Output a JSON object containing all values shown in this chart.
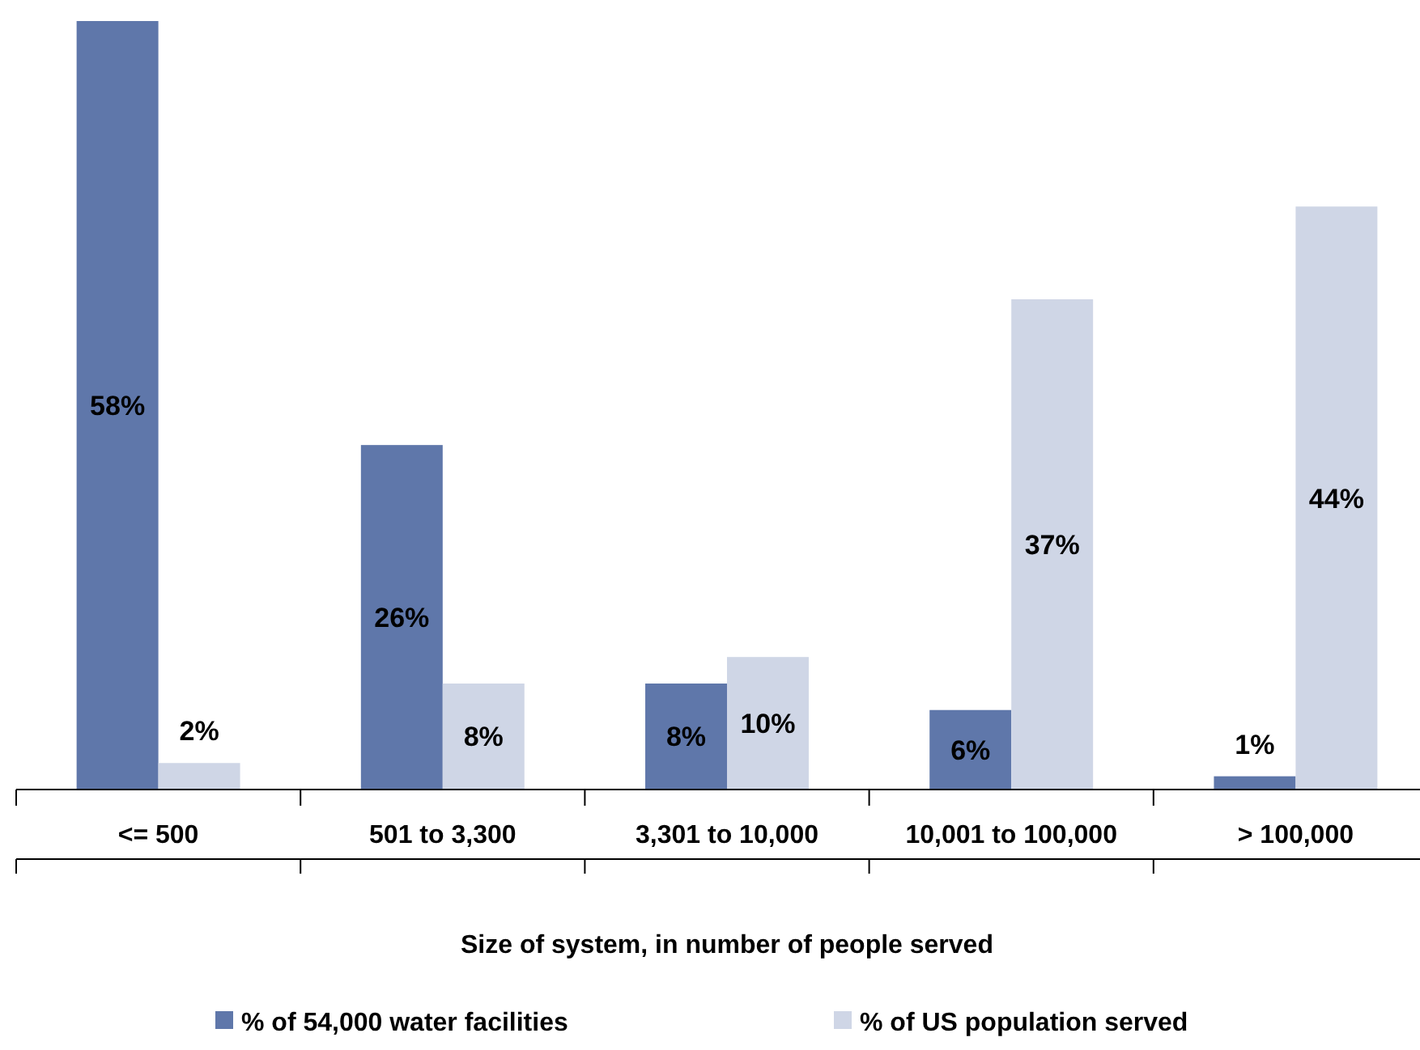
{
  "chart_data": {
    "type": "bar",
    "xlabel": "Size of system, in number of people served",
    "categories": [
      "<= 500",
      "501 to 3,300",
      "3,301 to 10,000",
      "10,001 to 100,000",
      "> 100,000"
    ],
    "series": [
      {
        "name": "% of 54,000 water facilities",
        "color": "#5f77aa",
        "values": [
          58,
          26,
          8,
          6,
          1
        ],
        "value_labels": [
          "58%",
          "26%",
          "8%",
          "6%",
          "1%"
        ]
      },
      {
        "name": "% of US population served",
        "color": "#cfd6e6",
        "values": [
          2,
          8,
          10,
          37,
          44
        ],
        "value_labels": [
          "2%",
          "8%",
          "10%",
          "37%",
          "44%"
        ]
      }
    ],
    "legend": "bottom"
  }
}
